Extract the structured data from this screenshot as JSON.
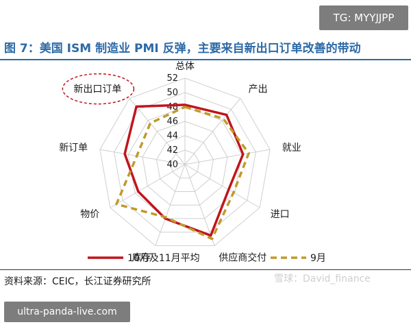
{
  "header": {
    "tg_label": "TG: MYYJJPP",
    "figure_title": "图 7：美国 ISM 制造业 PMI 反弹，主要来自新出口订单改善的带动"
  },
  "chart_data": {
    "type": "radar",
    "categories": [
      "总体",
      "产出",
      "就业",
      "进口",
      "供应商交付",
      "库存",
      "物价",
      "新订单",
      "新出口订单"
    ],
    "rlim": [
      40,
      52
    ],
    "ticks": [
      40,
      42,
      44,
      46,
      48,
      50,
      52
    ],
    "grid": true,
    "legend_position": "bottom",
    "series": [
      {
        "name": "10月及11月平均",
        "color": "#c0141c",
        "style": "solid",
        "values": [
          48.3,
          49.0,
          48.2,
          47.0,
          50.5,
          48.0,
          47.5,
          48.5,
          50.5
        ]
      },
      {
        "name": "9月",
        "color": "#c09a2a",
        "style": "dashed",
        "values": [
          48.0,
          48.3,
          49.0,
          47.8,
          51.0,
          47.8,
          51.0,
          46.8,
          47.5
        ]
      }
    ],
    "annotations": [
      {
        "text": "新出口订单",
        "style": "dashed-red-ellipse",
        "category": "新出口订单"
      }
    ]
  },
  "footer": {
    "source": "资料来源：CEIC，长江证券研究所",
    "watermark": "雪球：David_finance",
    "url_label": "ultra-panda-live.com"
  }
}
